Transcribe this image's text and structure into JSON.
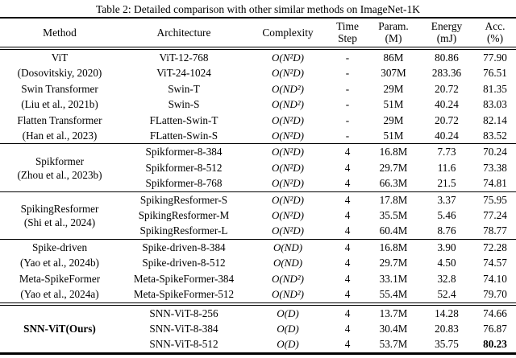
{
  "caption": "Table 2: Detailed comparison with other similar methods on ImageNet-1K",
  "table": {
    "columns": [
      {
        "label": "Method"
      },
      {
        "label": "Architecture"
      },
      {
        "label": "Complexity"
      },
      {
        "label": "Time\nStep"
      },
      {
        "label": "Param.\n(M)"
      },
      {
        "label": "Energy\n(mJ)"
      },
      {
        "label": "Acc.\n(%)"
      }
    ],
    "sections": [
      {
        "rule_above": "none",
        "merged_method": false,
        "rows": [
          {
            "method": "ViT",
            "architecture": "ViT-12-768",
            "complexity": "O(N²D)",
            "time_step": "-",
            "params": "86M",
            "energy": "80.86",
            "acc": "77.90"
          },
          {
            "method": "(Dosovitskiy, 2020)",
            "architecture": "ViT-24-1024",
            "complexity": "O(N²D)",
            "time_step": "-",
            "params": "307M",
            "energy": "283.36",
            "acc": "76.51"
          },
          {
            "method": "Swin Transformer",
            "architecture": "Swin-T",
            "complexity": "O(ND²)",
            "time_step": "-",
            "params": "29M",
            "energy": "20.72",
            "acc": "81.35"
          },
          {
            "method": "(Liu et al., 2021b)",
            "architecture": "Swin-S",
            "complexity": "O(ND²)",
            "time_step": "-",
            "params": "51M",
            "energy": "40.24",
            "acc": "83.03"
          },
          {
            "method": "Flatten Transformer",
            "architecture": "FLatten-Swin-T",
            "complexity": "O(N²D)",
            "time_step": "-",
            "params": "29M",
            "energy": "20.72",
            "acc": "82.14"
          },
          {
            "method": "(Han et al., 2023)",
            "architecture": "FLatten-Swin-S",
            "complexity": "O(N²D)",
            "time_step": "-",
            "params": "51M",
            "energy": "40.24",
            "acc": "83.52"
          }
        ]
      },
      {
        "rule_above": "single",
        "merged_method": true,
        "method_lines": [
          "Spikformer",
          "(Zhou et al., 2023b)"
        ],
        "method_bold": false,
        "rows": [
          {
            "architecture": "Spikformer-8-384",
            "complexity": "O(N²D)",
            "time_step": "4",
            "params": "16.8M",
            "energy": "7.73",
            "acc": "70.24"
          },
          {
            "architecture": "Spikformer-8-512",
            "complexity": "O(N²D)",
            "time_step": "4",
            "params": "29.7M",
            "energy": "11.6",
            "acc": "73.38"
          },
          {
            "architecture": "Spikformer-8-768",
            "complexity": "O(N²D)",
            "time_step": "4",
            "params": "66.3M",
            "energy": "21.5",
            "acc": "74.81"
          }
        ]
      },
      {
        "rule_above": "single",
        "merged_method": true,
        "method_lines": [
          "SpikingResformer",
          "(Shi et al., 2024)"
        ],
        "method_bold": false,
        "rows": [
          {
            "architecture": "SpikingResformer-S",
            "complexity": "O(N²D)",
            "time_step": "4",
            "params": "17.8M",
            "energy": "3.37",
            "acc": "75.95"
          },
          {
            "architecture": "SpikingResformer-M",
            "complexity": "O(N²D)",
            "time_step": "4",
            "params": "35.5M",
            "energy": "5.46",
            "acc": "77.24"
          },
          {
            "architecture": "SpikingResformer-L",
            "complexity": "O(N²D)",
            "time_step": "4",
            "params": "60.4M",
            "energy": "8.76",
            "acc": "78.77"
          }
        ]
      },
      {
        "rule_above": "single",
        "merged_method": false,
        "rows": [
          {
            "method": "Spike-driven",
            "architecture": "Spike-driven-8-384",
            "complexity": "O(ND)",
            "time_step": "4",
            "params": "16.8M",
            "energy": "3.90",
            "acc": "72.28"
          },
          {
            "method": "(Yao et al., 2024b)",
            "architecture": "Spike-driven-8-512",
            "complexity": "O(ND)",
            "time_step": "4",
            "params": "29.7M",
            "energy": "4.50",
            "acc": "74.57"
          },
          {
            "method": "Meta-SpikeFormer",
            "architecture": "Meta-SpikeFormer-384",
            "complexity": "O(ND²)",
            "time_step": "4",
            "params": "33.1M",
            "energy": "32.8",
            "acc": "74.10"
          },
          {
            "method": "(Yao et al., 2024a)",
            "architecture": "Meta-SpikeFormer-512",
            "complexity": "O(ND²)",
            "time_step": "4",
            "params": "55.4M",
            "energy": "52.4",
            "acc": "79.70"
          }
        ]
      },
      {
        "rule_above": "double",
        "merged_method": true,
        "method_lines": [
          "SNN-ViT(Ours)"
        ],
        "method_bold": true,
        "rows": [
          {
            "architecture": "SNN-ViT-8-256",
            "complexity": "O(D)",
            "time_step": "4",
            "params": "13.7M",
            "energy": "14.28",
            "acc": "74.66"
          },
          {
            "architecture": "SNN-ViT-8-384",
            "complexity": "O(D)",
            "time_step": "4",
            "params": "30.4M",
            "energy": "20.83",
            "acc": "76.87"
          },
          {
            "architecture": "SNN-ViT-8-512",
            "complexity": "O(D)",
            "time_step": "4",
            "params": "53.7M",
            "energy": "35.75",
            "acc": "80.23",
            "acc_bold": true
          }
        ]
      }
    ]
  }
}
